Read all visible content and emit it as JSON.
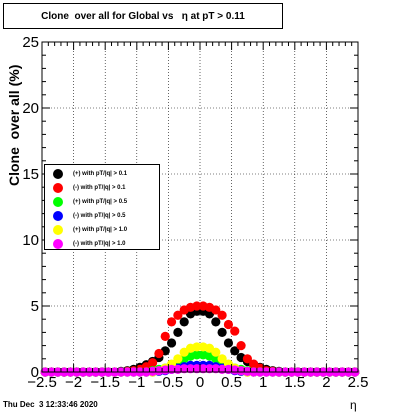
{
  "title": "Clone  over all for Global vs   η at pT > 0.11",
  "footer": "Thu Dec  3 12:33:46 2020",
  "colors": {
    "s1": "#000000",
    "s2": "#ff0000",
    "s3": "#00ff00",
    "s4": "#0000ff",
    "s5": "#ffff00",
    "s6": "#ff00ff"
  },
  "chart_data": {
    "type": "scatter",
    "title": "Clone  over all for Global vs   η at pT > 0.11",
    "xlabel": "η",
    "ylabel": "Clone  over all (%)",
    "xlim": [
      -2.5,
      2.5
    ],
    "ylim": [
      0,
      25
    ],
    "grid": true,
    "legend_position": "middle-left",
    "x_ticks": [
      "−2.5",
      "−2",
      "−1.5",
      "−1",
      "−0.5",
      "0",
      "0.5",
      "1",
      "1.5",
      "2",
      "2.5"
    ],
    "y_ticks": [
      "0",
      "5",
      "10",
      "15",
      "20",
      "25"
    ],
    "x": [
      -2.45,
      -2.35,
      -2.25,
      -2.15,
      -2.05,
      -1.95,
      -1.85,
      -1.75,
      -1.65,
      -1.55,
      -1.45,
      -1.35,
      -1.25,
      -1.15,
      -1.05,
      -0.95,
      -0.85,
      -0.75,
      -0.65,
      -0.55,
      -0.45,
      -0.35,
      -0.25,
      -0.15,
      -0.05,
      0.05,
      0.15,
      0.25,
      0.35,
      0.45,
      0.55,
      0.65,
      0.75,
      0.85,
      0.95,
      1.05,
      1.15,
      1.25,
      1.35,
      1.45,
      1.55,
      1.65,
      1.75,
      1.85,
      1.95,
      2.05,
      2.15,
      2.25,
      2.35,
      2.45
    ],
    "series": [
      {
        "name": "(+) with pT/|q| > 0.1",
        "color": "#000000",
        "values": [
          0,
          0,
          0,
          0,
          0,
          0,
          0,
          0,
          0,
          0,
          0,
          0,
          0.05,
          0.1,
          0.2,
          0.35,
          0.55,
          0.8,
          1.1,
          1.6,
          2.2,
          3.0,
          3.8,
          4.4,
          4.6,
          4.6,
          4.4,
          3.8,
          3.0,
          2.2,
          1.6,
          1.1,
          0.8,
          0.55,
          0.35,
          0.2,
          0.1,
          0.05,
          0,
          0,
          0,
          0,
          0,
          0,
          0,
          0,
          0,
          0,
          0,
          0
        ]
      },
      {
        "name": "(-) with pT/|q| > 0.1",
        "color": "#ff0000",
        "values": [
          0,
          0,
          0,
          0,
          0,
          0,
          0,
          0,
          0,
          0,
          0,
          0,
          0,
          0.05,
          0.1,
          0.2,
          0.4,
          0.7,
          1.4,
          2.7,
          3.8,
          4.3,
          4.7,
          4.9,
          5.0,
          5.0,
          4.9,
          4.7,
          4.3,
          3.6,
          3.1,
          2.0,
          1.0,
          0.6,
          0.3,
          0.1,
          0.05,
          0,
          0,
          0,
          0,
          0,
          0,
          0,
          0,
          0,
          0,
          0,
          0,
          0
        ]
      },
      {
        "name": "(+) with pT/|q| > 0.5",
        "color": "#00ff00",
        "values": [
          0,
          0,
          0,
          0,
          0,
          0,
          0,
          0,
          0,
          0,
          0,
          0,
          0,
          0,
          0,
          0,
          0,
          0.1,
          0.2,
          0.3,
          0.5,
          0.8,
          1.0,
          1.2,
          1.3,
          1.3,
          1.2,
          1.0,
          0.8,
          0.5,
          0.3,
          0.2,
          0.1,
          0,
          0,
          0,
          0,
          0,
          0,
          0,
          0,
          0,
          0,
          0,
          0,
          0,
          0,
          0,
          0,
          0
        ]
      },
      {
        "name": "(-) with pT/|q| > 0.5",
        "color": "#0000ff",
        "values": [
          0,
          0,
          0,
          0,
          0,
          0,
          0,
          0,
          0,
          0,
          0,
          0,
          0,
          0,
          0,
          0,
          0,
          0,
          0.05,
          0.1,
          0.2,
          0.3,
          0.4,
          0.5,
          0.5,
          0.5,
          0.5,
          0.4,
          0.3,
          0.2,
          0.1,
          0.05,
          0,
          0,
          0,
          0,
          0,
          0,
          0,
          0,
          0,
          0,
          0,
          0,
          0,
          0,
          0,
          0,
          0,
          0
        ]
      },
      {
        "name": "(+) with pT/|q| > 1.0",
        "color": "#ffff00",
        "values": [
          0,
          0,
          0,
          0,
          0,
          0,
          0,
          0,
          0,
          0,
          0,
          0,
          0,
          0,
          0,
          0,
          0,
          0,
          0.1,
          0.3,
          0.6,
          1.0,
          1.5,
          1.8,
          1.9,
          1.9,
          1.8,
          1.5,
          1.0,
          0.6,
          0.3,
          0.1,
          0,
          0,
          0,
          0,
          0,
          0,
          0,
          0,
          0,
          0,
          0,
          0,
          0,
          0,
          0,
          0,
          0,
          0
        ]
      },
      {
        "name": "(-) with pT/|q| > 1.0",
        "color": "#ff00ff",
        "values": [
          0,
          0,
          0,
          0,
          0,
          0,
          0,
          0,
          0,
          0,
          0,
          0,
          0,
          0,
          0,
          0,
          0,
          0.05,
          0.1,
          0.15,
          0.2,
          0.2,
          0.25,
          0.25,
          0.25,
          0.25,
          0.25,
          0.25,
          0.2,
          0.2,
          0.15,
          0.1,
          0.05,
          0,
          0,
          0,
          0,
          0,
          0,
          0,
          0,
          0,
          0,
          0,
          0,
          0,
          0,
          0,
          0,
          0
        ]
      }
    ]
  }
}
